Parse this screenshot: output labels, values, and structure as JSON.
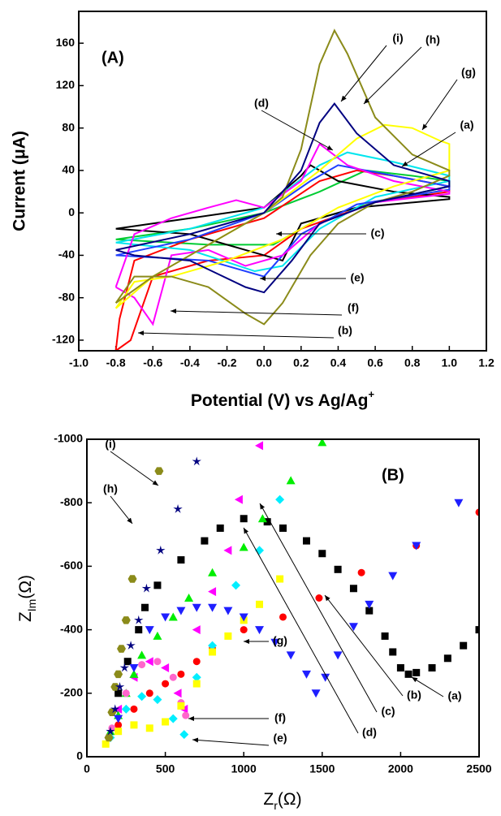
{
  "chart_data": [
    {
      "type": "line",
      "title": "(A)",
      "ylabel": "Current (μA)",
      "xlabel": [
        "Potential (V) vs Ag/Ag",
        "+"
      ],
      "xlim": [
        -1.0,
        1.2
      ],
      "ylim": [
        -130,
        190
      ],
      "xticks": [
        {
          "value": -1.0,
          "label": "-1.0"
        },
        -0.8,
        -0.6,
        -0.4,
        -0.2,
        {
          "value": 0,
          "label": "0.0"
        },
        0.2,
        0.4,
        0.6,
        0.8,
        {
          "value": 1.0,
          "label": "1.0"
        },
        1.2
      ],
      "yticks": [
        -120,
        -80,
        -40,
        0,
        40,
        80,
        120,
        160
      ],
      "series": [
        {
          "name": "(a)",
          "color": "#00cc33",
          "x": [
            -0.8,
            -0.4,
            0,
            0.3,
            0.55,
            0.8,
            1.0,
            1.0,
            0.6,
            0.3,
            0.05,
            -0.3,
            -0.8
          ],
          "values": [
            -25,
            -15,
            0,
            20,
            40,
            35,
            30,
            25,
            10,
            -5,
            -30,
            -30,
            -25
          ]
        },
        {
          "name": "(b)",
          "color": "#ff0000",
          "x": [
            -0.8,
            -0.78,
            -0.7,
            -0.4,
            0,
            0.3,
            0.5,
            0.7,
            1.0,
            1.0,
            0.6,
            0.2,
            0,
            -0.3,
            -0.6,
            -0.72,
            -0.8
          ],
          "values": [
            -130,
            -100,
            -45,
            -25,
            -5,
            30,
            40,
            35,
            25,
            20,
            10,
            -15,
            -40,
            -45,
            -60,
            -120,
            -130
          ]
        },
        {
          "name": "(c)",
          "color": "#000000",
          "x": [
            -0.8,
            -0.4,
            0,
            0.2,
            0.25,
            0.4,
            0.7,
            1.0,
            1.0,
            0.5,
            0.2,
            0.1,
            0,
            -0.4,
            -0.8
          ],
          "values": [
            -15,
            -5,
            5,
            35,
            45,
            30,
            20,
            15,
            13,
            5,
            -10,
            -45,
            -40,
            -20,
            -15
          ]
        },
        {
          "name": "(d)",
          "color": "#00e5ee",
          "x": [
            -0.8,
            -0.4,
            0,
            0.3,
            0.45,
            0.7,
            1.0,
            1.0,
            0.6,
            0.3,
            0.1,
            -0.05,
            -0.4,
            -0.8
          ],
          "values": [
            -28,
            -15,
            5,
            45,
            57,
            48,
            35,
            30,
            15,
            -15,
            -50,
            -55,
            -35,
            -28
          ]
        },
        {
          "name": "(e)",
          "color": "#1f3fff",
          "x": [
            -0.8,
            -0.4,
            0,
            0.25,
            0.4,
            0.7,
            1.0,
            1.0,
            0.5,
            0.2,
            0,
            -0.3,
            -0.8
          ],
          "values": [
            -40,
            -25,
            0,
            30,
            45,
            35,
            25,
            22,
            8,
            -20,
            -60,
            -45,
            -40
          ]
        },
        {
          "name": "(f)",
          "color": "#ff00ff",
          "x": [
            -0.8,
            -0.7,
            -0.5,
            -0.3,
            -0.15,
            0,
            0.2,
            0.3,
            0.45,
            0.7,
            1.0,
            1.0,
            0.6,
            0.3,
            0.1,
            -0.1,
            -0.3,
            -0.5,
            -0.6,
            -0.7,
            -0.8
          ],
          "values": [
            -70,
            -20,
            -5,
            5,
            12,
            5,
            30,
            65,
            45,
            30,
            20,
            18,
            10,
            -10,
            -40,
            -50,
            -35,
            -40,
            -105,
            -80,
            -70
          ]
        },
        {
          "name": "(g)",
          "color": "#ffff00",
          "x": [
            -0.8,
            -0.6,
            -0.3,
            0,
            0.3,
            0.5,
            0.65,
            0.8,
            0.95,
            1.0,
            1.0,
            0.7,
            0.4,
            0.1,
            -0.2,
            -0.5,
            -0.7,
            -0.8
          ],
          "values": [
            -90,
            -60,
            -30,
            0,
            40,
            70,
            83,
            80,
            68,
            65,
            40,
            25,
            5,
            -25,
            -45,
            -60,
            -65,
            -90
          ]
        },
        {
          "name": "(h)",
          "color": "#8b8b1a",
          "x": [
            -0.8,
            -0.6,
            -0.4,
            -0.2,
            0,
            0.1,
            0.2,
            0.3,
            0.38,
            0.45,
            0.6,
            0.8,
            1.0,
            1.0,
            0.8,
            0.6,
            0.4,
            0.25,
            0.1,
            0,
            -0.1,
            -0.3,
            -0.5,
            -0.7,
            -0.8
          ],
          "values": [
            -85,
            -60,
            -40,
            -20,
            0,
            15,
            60,
            140,
            172,
            150,
            90,
            55,
            40,
            35,
            20,
            10,
            -10,
            -40,
            -85,
            -105,
            -95,
            -70,
            -60,
            -60,
            -85
          ]
        },
        {
          "name": "(i)",
          "color": "#000080",
          "x": [
            -0.8,
            -0.4,
            0,
            0.2,
            0.3,
            0.38,
            0.5,
            0.7,
            1.0,
            1.0,
            0.6,
            0.3,
            0.15,
            0,
            -0.1,
            -0.4,
            -0.7,
            -0.8
          ],
          "values": [
            -35,
            -20,
            0,
            40,
            85,
            103,
            75,
            45,
            30,
            25,
            10,
            -10,
            -45,
            -75,
            -70,
            -45,
            -40,
            -35
          ]
        }
      ]
    },
    {
      "type": "scatter",
      "title": "(B)",
      "ylabel": [
        "Z",
        "Im",
        "(Ω)"
      ],
      "xlabel": [
        "Z",
        "r",
        "(Ω)"
      ],
      "xlim": [
        0,
        2500
      ],
      "ylim": [
        0,
        -1000
      ],
      "xticks": [
        0,
        500,
        1000,
        1500,
        2000,
        2500
      ],
      "yticks": [
        0,
        -200,
        -400,
        -600,
        -800,
        -1000
      ],
      "series": [
        {
          "name": "(a)",
          "color": "#000000",
          "marker": "square",
          "x": [
            200,
            260,
            330,
            370,
            450,
            600,
            750,
            850,
            1000,
            1150,
            1250,
            1400,
            1500,
            1600,
            1700,
            1800,
            1900,
            1950,
            2000,
            2050,
            2100,
            2200,
            2300,
            2400,
            2500
          ],
          "values": [
            -200,
            -300,
            -400,
            -470,
            -540,
            -620,
            -680,
            -720,
            -750,
            -740,
            -720,
            -680,
            -640,
            -590,
            -530,
            -460,
            -380,
            -330,
            -280,
            -260,
            -265,
            -280,
            -310,
            -350,
            -400
          ]
        },
        {
          "name": "(b)",
          "color": "#ff0000",
          "marker": "circle",
          "x": [
            200,
            300,
            400,
            500,
            600,
            700,
            800,
            1000,
            1250,
            1480,
            1750,
            2100,
            2500
          ],
          "values": [
            -100,
            -150,
            -200,
            -230,
            -260,
            -300,
            -340,
            -400,
            -440,
            -500,
            -580,
            -665,
            -770
          ]
        },
        {
          "name": "(c)",
          "color": "#ff00ff",
          "marker": "left",
          "x": [
            200,
            300,
            400,
            500,
            580,
            620,
            700,
            800,
            900,
            970,
            1100
          ],
          "values": [
            -150,
            -250,
            -300,
            -280,
            -200,
            -150,
            -400,
            -520,
            -650,
            -810,
            -980
          ]
        },
        {
          "name": "(d)",
          "color": "#00ee00",
          "marker": "up",
          "x": [
            150,
            200,
            250,
            300,
            350,
            450,
            550,
            650,
            800,
            1000,
            1120,
            1300,
            1500
          ],
          "values": [
            -80,
            -130,
            -200,
            -260,
            -320,
            -380,
            -440,
            -500,
            -580,
            -660,
            -750,
            -870,
            -990
          ]
        },
        {
          "name": "(e)",
          "color": "#00eeff",
          "marker": "diamond",
          "x": [
            150,
            250,
            350,
            450,
            550,
            620,
            700,
            800,
            950,
            1100,
            1230
          ],
          "values": [
            -60,
            -150,
            -190,
            -180,
            -120,
            -70,
            -250,
            -350,
            -540,
            -650,
            -810
          ]
        },
        {
          "name": "(f)",
          "color": "#ff66cc",
          "marker": "circle",
          "x": [
            160,
            250,
            350,
            450,
            550,
            600,
            630
          ],
          "values": [
            -90,
            -200,
            -290,
            -300,
            -250,
            -170,
            -130
          ]
        },
        {
          "name": "(g)",
          "color": "#ffff00",
          "marker": "square",
          "x": [
            120,
            200,
            300,
            400,
            500,
            600,
            700,
            800,
            900,
            1000,
            1100,
            1230
          ],
          "values": [
            -40,
            -80,
            -100,
            -90,
            -110,
            -160,
            -230,
            -330,
            -380,
            -430,
            -480,
            -560
          ]
        },
        {
          "name": "(h)",
          "color": "#8b8b1a",
          "marker": "hexagon",
          "x": [
            140,
            160,
            180,
            200,
            220,
            250,
            290,
            460
          ],
          "values": [
            -60,
            -140,
            -220,
            -260,
            -340,
            -430,
            -560,
            -900
          ]
        },
        {
          "name": "(i)",
          "color": "#000080",
          "marker": "star",
          "x": [
            150,
            180,
            210,
            240,
            280,
            330,
            380,
            470,
            580,
            700
          ],
          "values": [
            -80,
            -150,
            -220,
            -280,
            -350,
            -430,
            -530,
            -650,
            -780,
            -930
          ]
        },
        {
          "name": null,
          "color": "#1f1fff",
          "marker": "down",
          "x": [
            200,
            300,
            400,
            500,
            600,
            700,
            800,
            900,
            1000,
            1100,
            1200,
            1300,
            1400,
            1460,
            1520,
            1600,
            1700,
            1800,
            1950,
            2100,
            2370
          ],
          "values": [
            -120,
            -280,
            -400,
            -440,
            -460,
            -470,
            -470,
            -460,
            -440,
            -400,
            -360,
            -320,
            -260,
            -200,
            -250,
            -320,
            -410,
            -480,
            -570,
            -665,
            -800
          ]
        }
      ]
    }
  ]
}
